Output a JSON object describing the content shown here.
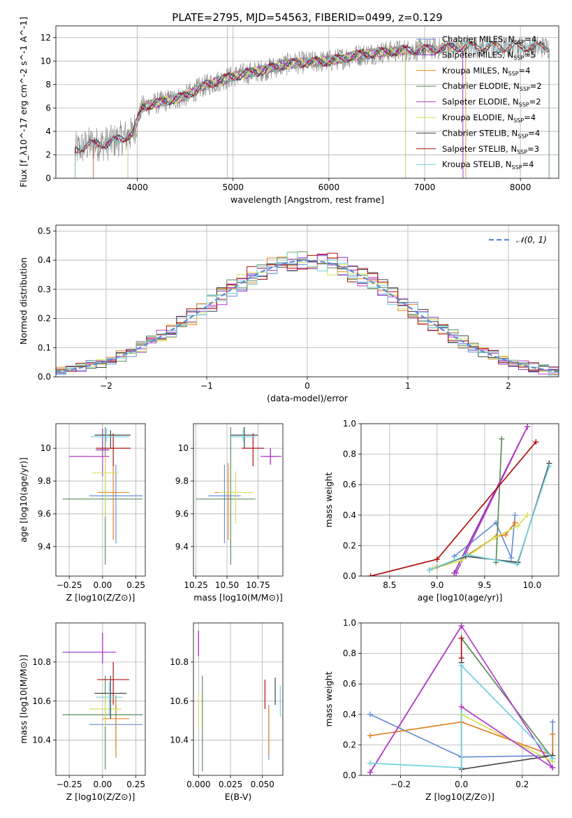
{
  "figure_title": "PLATE=2795, MJD=54563, FIBERID=0499, z=0.129",
  "colors": {
    "Chabrier MILES": "#6a8fd8",
    "Salpeter MILES": "#8e2fb0",
    "Kroupa MILES": "#e08224",
    "Chabrier ELODIE": "#5d8b5d",
    "Salpeter ELODIE": "#b43cc8",
    "Kroupa ELODIE": "#d8e05a",
    "Chabrier STELIB": "#444444",
    "Salpeter STELIB": "#b01010",
    "Kroupa STELIB": "#74d2e0",
    "Data spectrum": "#808080",
    "Gaussian": "#5b8ad6",
    "grid": "#b0b0b0"
  },
  "chart_data": [
    {
      "id": "spectrum",
      "type": "line",
      "title": "PLATE=2795, MJD=54563, FIBERID=0499, z=0.129",
      "xlabel": "wavelength [Angstrom, rest frame]",
      "ylabel": "Flux [f_λ10^-17 erg cm^-2 s^-1 A^-1]",
      "xlim": [
        3150,
        8400
      ],
      "ylim": [
        0,
        13
      ],
      "xticks": [
        4000,
        5000,
        6000,
        7000,
        8000
      ],
      "yticks": [
        0,
        2,
        4,
        6,
        8,
        10,
        12
      ],
      "grid": true,
      "legend_position": "top-right",
      "legend": [
        "Chabrier MILES, N_SSP=4",
        "Salpeter MILES, N_SSP=5",
        "Kroupa MILES, N_SSP=4",
        "Chabrier ELODIE, N_SSP=2",
        "Salpeter ELODIE, N_SSP=2",
        "Kroupa ELODIE, N_SSP=4",
        "Chabrier STELIB, N_SSP=4",
        "Salpeter STELIB, N_SSP=3",
        "Kroupa STELIB, N_SSP=4"
      ],
      "continuum_knots": [
        [
          3350,
          2.4
        ],
        [
          3500,
          2.9
        ],
        [
          3700,
          3.0
        ],
        [
          3800,
          3.3
        ],
        [
          3950,
          3.8
        ],
        [
          4050,
          6.1
        ],
        [
          4300,
          6.6
        ],
        [
          4500,
          7.0
        ],
        [
          4700,
          7.9
        ],
        [
          5000,
          8.7
        ],
        [
          5300,
          9.2
        ],
        [
          5600,
          9.8
        ],
        [
          6000,
          10.0
        ],
        [
          6300,
          10.5
        ],
        [
          6600,
          10.8
        ],
        [
          7000,
          11.0
        ],
        [
          7400,
          11.2
        ],
        [
          8300,
          11.2
        ]
      ],
      "model_ranges": {
        "Chabrier MILES": [
          3540,
          7400
        ],
        "Salpeter MILES": [
          3540,
          7400
        ],
        "Kroupa MILES": [
          3540,
          7430
        ],
        "Chabrier ELODIE": [
          3900,
          6800
        ],
        "Salpeter ELODIE": [
          3900,
          6800
        ],
        "Kroupa ELODIE": [
          3900,
          6800
        ],
        "Chabrier STELIB": [
          3350,
          8300
        ],
        "Salpeter STELIB": [
          3350,
          8300
        ],
        "Kroupa STELIB": [
          3350,
          8300
        ]
      }
    },
    {
      "id": "residuals",
      "type": "histogram",
      "xlabel": "(data-model)/error",
      "ylabel": "Normed distribution",
      "xlim": [
        -2.5,
        2.5
      ],
      "ylim": [
        0,
        0.52
      ],
      "xticks": [
        -2,
        -1,
        0,
        1,
        2
      ],
      "yticks": [
        0.0,
        0.1,
        0.2,
        0.3,
        0.4,
        0.5
      ],
      "grid": true,
      "legend_position": "top-right",
      "gaussian_label": "𝒩(0, 1)",
      "bin_width": 0.1,
      "bin_start": -2.5
    },
    {
      "id": "age_vs_Z",
      "type": "scatter",
      "xlabel": "Z [log10(Z/Z⊙)]",
      "ylabel": "age [log10(age/yr)]",
      "xlim": [
        -0.35,
        0.32
      ],
      "ylim": [
        9.22,
        10.15
      ],
      "xticks": [
        -0.25,
        0.0,
        0.25
      ],
      "xticklabels": [
        "−0.25",
        "0.00",
        "0.25"
      ],
      "yticks": [
        9.4,
        9.6,
        9.8,
        10.0
      ],
      "points": [
        {
          "model": "Chabrier MILES",
          "x": 0.1,
          "y": 9.71,
          "xerr": [
            0.2,
            0.2
          ],
          "yerr": [
            0.29,
            0.19
          ]
        },
        {
          "model": "Salpeter MILES",
          "x": 0.0,
          "y": 9.99,
          "xerr": [
            0.05,
            0.05
          ],
          "yerr": [
            0.02,
            0.13
          ]
        },
        {
          "model": "Kroupa MILES",
          "x": 0.08,
          "y": 9.73,
          "xerr": [
            0.12,
            0.12
          ],
          "yerr": [
            0.29,
            0.18
          ]
        },
        {
          "model": "Chabrier ELODIE",
          "x": 0.02,
          "y": 9.69,
          "xerr": [
            0.32,
            0.28
          ],
          "yerr": [
            0.4,
            0.44
          ]
        },
        {
          "model": "Salpeter ELODIE",
          "x": 0.0,
          "y": 9.95,
          "xerr": [
            0.25,
            0.05
          ],
          "yerr": [
            0.12,
            0.05
          ]
        },
        {
          "model": "Kroupa ELODIE",
          "x": 0.02,
          "y": 9.85,
          "xerr": [
            0.1,
            0.1
          ],
          "yerr": [
            0.27,
            0.1
          ]
        },
        {
          "model": "Chabrier STELIB",
          "x": 0.06,
          "y": 10.08,
          "xerr": [
            0.12,
            0.15
          ],
          "yerr": [
            0.08,
            0.03
          ]
        },
        {
          "model": "Salpeter STELIB",
          "x": 0.08,
          "y": 10.0,
          "xerr": [
            0.13,
            0.13
          ],
          "yerr": [
            0.11,
            0.09
          ]
        },
        {
          "model": "Kroupa STELIB",
          "x": 0.03,
          "y": 10.07,
          "xerr": [
            0.12,
            0.17
          ],
          "yerr": [
            0.03,
            0.05
          ]
        }
      ]
    },
    {
      "id": "age_vs_mass",
      "type": "scatter",
      "xlabel": "mass [log10(M/M⊙)]",
      "ylabel": "",
      "xlim": [
        10.23,
        10.95
      ],
      "ylim": [
        9.22,
        10.15
      ],
      "xticks": [
        10.25,
        10.5,
        10.75
      ],
      "xticklabels": [
        "10.25",
        "10.50",
        "10.75"
      ],
      "yticks": [
        9.4,
        9.6,
        9.8,
        10.0
      ],
      "points": [
        {
          "model": "Chabrier MILES",
          "x": 10.48,
          "y": 9.71,
          "xerr": [
            0.13,
            0.13
          ],
          "yerr": [
            0.29,
            0.19
          ]
        },
        {
          "model": "Salpeter MILES",
          "x": 10.85,
          "y": 9.95,
          "xerr": [
            0.05,
            0.05
          ],
          "yerr": [
            0.05,
            0.05
          ]
        },
        {
          "model": "Kroupa MILES",
          "x": 10.51,
          "y": 9.73,
          "xerr": [
            0.11,
            0.11
          ],
          "yerr": [
            0.29,
            0.18
          ]
        },
        {
          "model": "Chabrier ELODIE",
          "x": 10.53,
          "y": 9.69,
          "xerr": [
            0.28,
            0.2
          ],
          "yerr": [
            0.4,
            0.44
          ]
        },
        {
          "model": "Salpeter ELODIE",
          "x": 10.85,
          "y": 9.95,
          "xerr": [
            0.08,
            0.09
          ],
          "yerr": [
            0.05,
            0.05
          ]
        },
        {
          "model": "Kroupa ELODIE",
          "x": 10.57,
          "y": 9.73,
          "xerr": [
            0.14,
            0.14
          ],
          "yerr": [
            0.19,
            0.13
          ]
        },
        {
          "model": "Chabrier STELIB",
          "x": 10.64,
          "y": 10.08,
          "xerr": [
            0.11,
            0.11
          ],
          "yerr": [
            0.08,
            0.05
          ]
        },
        {
          "model": "Salpeter STELIB",
          "x": 10.71,
          "y": 10.0,
          "xerr": [
            0.09,
            0.09
          ],
          "yerr": [
            0.11,
            0.09
          ]
        },
        {
          "model": "Kroupa STELIB",
          "x": 10.63,
          "y": 10.07,
          "xerr": [
            0.11,
            0.1
          ],
          "yerr": [
            0.03,
            0.05
          ]
        }
      ]
    },
    {
      "id": "weight_vs_age",
      "type": "line",
      "xlabel": "age [log10(age/yr)]",
      "ylabel": "mass weight",
      "xlim": [
        8.2,
        10.28
      ],
      "ylim": [
        0,
        1
      ],
      "xticks": [
        8.5,
        9.0,
        9.5,
        10.0
      ],
      "xticklabels": [
        "8.5",
        "9.0",
        "9.5",
        "10.0"
      ],
      "yticks": [
        0.0,
        0.2,
        0.4,
        0.6,
        0.8,
        1.0
      ],
      "grid": true,
      "series": [
        {
          "model": "Chabrier MILES",
          "x": [
            9.18,
            9.62,
            9.78,
            9.82
          ],
          "y": [
            0.13,
            0.35,
            0.12,
            0.4
          ]
        },
        {
          "model": "Salpeter MILES",
          "x": [
            9.18,
            9.95
          ],
          "y": [
            0.02,
            0.98
          ]
        },
        {
          "model": "Kroupa MILES",
          "x": [
            9.0,
            9.3,
            9.62,
            9.72,
            9.82
          ],
          "y": [
            0.06,
            0.13,
            0.26,
            0.27,
            0.35
          ]
        },
        {
          "model": "Chabrier ELODIE",
          "x": [
            9.62,
            9.68
          ],
          "y": [
            0.09,
            0.9
          ]
        },
        {
          "model": "Salpeter ELODIE",
          "x": [
            9.2,
            9.95
          ],
          "y": [
            0.02,
            0.98
          ]
        },
        {
          "model": "Kroupa ELODIE",
          "x": [
            8.95,
            9.25,
            9.6,
            9.85,
            9.95
          ],
          "y": [
            0.05,
            0.1,
            0.25,
            0.33,
            0.4
          ]
        },
        {
          "model": "Chabrier STELIB",
          "x": [
            8.92,
            9.3,
            9.85,
            10.18
          ],
          "y": [
            0.04,
            0.13,
            0.09,
            0.74
          ]
        },
        {
          "model": "Salpeter STELIB",
          "x": [
            8.3,
            9.0,
            10.04
          ],
          "y": [
            0.0,
            0.11,
            0.88
          ]
        },
        {
          "model": "Kroupa STELIB",
          "x": [
            8.92,
            9.32,
            9.84,
            10.18
          ],
          "y": [
            0.04,
            0.14,
            0.08,
            0.72
          ]
        }
      ]
    },
    {
      "id": "mass_vs_Z",
      "type": "scatter",
      "xlabel": "Z [log10(Z/Z⊙)]",
      "ylabel": "mass [log10(M/M⊙)]",
      "xlim": [
        -0.35,
        0.32
      ],
      "ylim": [
        10.22,
        11.0
      ],
      "xticks": [
        -0.25,
        0.0,
        0.25
      ],
      "xticklabels": [
        "−0.25",
        "0.00",
        "0.25"
      ],
      "yticks": [
        10.4,
        10.6,
        10.8
      ],
      "points": [
        {
          "model": "Chabrier MILES",
          "x": 0.1,
          "y": 10.48,
          "xerr": [
            0.2,
            0.2
          ],
          "yerr": [
            0.13,
            0.13
          ]
        },
        {
          "model": "Salpeter MILES",
          "x": 0.0,
          "y": 10.85,
          "xerr": [
            0.3,
            0.1
          ],
          "yerr": [
            0.05,
            0.1
          ]
        },
        {
          "model": "Kroupa MILES",
          "x": 0.1,
          "y": 10.51,
          "xerr": [
            0.1,
            0.1
          ],
          "yerr": [
            0.2,
            0.12
          ]
        },
        {
          "model": "Chabrier ELODIE",
          "x": 0.02,
          "y": 10.53,
          "xerr": [
            0.32,
            0.28
          ],
          "yerr": [
            0.28,
            0.2
          ]
        },
        {
          "model": "Salpeter ELODIE",
          "x": 0.0,
          "y": 10.85,
          "xerr": [
            0.05,
            0.05
          ],
          "yerr": [
            0.06,
            0.1
          ]
        },
        {
          "model": "Kroupa ELODIE",
          "x": 0.02,
          "y": 10.56,
          "xerr": [
            0.12,
            0.12
          ],
          "yerr": [
            0.09,
            0.08
          ]
        },
        {
          "model": "Chabrier STELIB",
          "x": 0.06,
          "y": 10.64,
          "xerr": [
            0.12,
            0.12
          ],
          "yerr": [
            0.13,
            0.09
          ]
        },
        {
          "model": "Salpeter STELIB",
          "x": 0.08,
          "y": 10.71,
          "xerr": [
            0.12,
            0.12
          ],
          "yerr": [
            0.13,
            0.09
          ]
        },
        {
          "model": "Kroupa STELIB",
          "x": 0.05,
          "y": 10.62,
          "xerr": [
            0.1,
            0.1
          ],
          "yerr": [
            0.1,
            0.08
          ]
        }
      ]
    },
    {
      "id": "mass_vs_ebv",
      "type": "scatter",
      "xlabel": "E(B-V)",
      "ylabel": "",
      "xlim": [
        -0.004,
        0.066
      ],
      "ylim": [
        10.22,
        11.0
      ],
      "xticks": [
        0.0,
        0.025,
        0.05
      ],
      "xticklabels": [
        "0.000",
        "0.025",
        "0.050"
      ],
      "yticks": [
        10.4,
        10.6,
        10.8
      ],
      "points": [
        {
          "model": "Chabrier MILES",
          "x": 0.055,
          "y": 10.48,
          "xerr": [
            0,
            0
          ],
          "yerr": [
            0.18,
            0.1
          ]
        },
        {
          "model": "Salpeter MILES",
          "x": 0.0,
          "y": 10.88,
          "xerr": [
            0,
            0
          ],
          "yerr": [
            0.05,
            0.08
          ]
        },
        {
          "model": "Kroupa MILES",
          "x": 0.055,
          "y": 10.51,
          "xerr": [
            0,
            0
          ],
          "yerr": [
            0.18,
            0.06
          ]
        },
        {
          "model": "Chabrier ELODIE",
          "x": 0.003,
          "y": 10.5,
          "xerr": [
            0,
            0
          ],
          "yerr": [
            0.26,
            0.23
          ]
        },
        {
          "model": "Salpeter ELODIE",
          "x": 0.0,
          "y": 10.88,
          "xerr": [
            0,
            0
          ],
          "yerr": [
            0.05,
            0.08
          ]
        },
        {
          "model": "Kroupa ELODIE",
          "x": 0.0,
          "y": 10.56,
          "xerr": [
            0,
            0
          ],
          "yerr": [
            0.1,
            0.08
          ]
        },
        {
          "model": "Chabrier STELIB",
          "x": 0.06,
          "y": 10.64,
          "xerr": [
            0,
            0
          ],
          "yerr": [
            0.06,
            0.08
          ]
        },
        {
          "model": "Salpeter STELIB",
          "x": 0.052,
          "y": 10.62,
          "xerr": [
            0,
            0
          ],
          "yerr": [
            0.06,
            0.09
          ]
        },
        {
          "model": "Kroupa STELIB",
          "x": 0.064,
          "y": 10.58,
          "xerr": [
            0,
            0
          ],
          "yerr": [
            0.06,
            0.1
          ]
        }
      ]
    },
    {
      "id": "weight_vs_Z",
      "type": "line",
      "xlabel": "Z [log10(Z/Z⊙)]",
      "ylabel": "mass weight",
      "xlim": [
        -0.33,
        0.32
      ],
      "ylim": [
        0,
        1
      ],
      "xticks": [
        -0.2,
        0.0,
        0.2
      ],
      "xticklabels": [
        "−0.2",
        "0.0",
        "0.2"
      ],
      "yticks": [
        0.0,
        0.2,
        0.4,
        0.6,
        0.8,
        1.0
      ],
      "grid": true,
      "series": [
        {
          "model": "Chabrier MILES",
          "x": [
            -0.3,
            0.0,
            0.0,
            0.3,
            0.3
          ],
          "y": [
            0.4,
            0.12,
            0.12,
            0.13,
            0.35
          ]
        },
        {
          "model": "Salpeter MILES",
          "x": [
            -0.3,
            0.0
          ],
          "y": [
            0.02,
            0.98
          ]
        },
        {
          "model": "Kroupa MILES",
          "x": [
            -0.3,
            0.0,
            0.3,
            0.3
          ],
          "y": [
            0.26,
            0.35,
            0.13,
            0.27
          ]
        },
        {
          "model": "Chabrier ELODIE",
          "x": [
            0.0,
            0.3
          ],
          "y": [
            0.9,
            0.11
          ]
        },
        {
          "model": "Salpeter ELODIE",
          "x": [
            -0.3,
            0.0,
            0.3
          ],
          "y": [
            0.02,
            0.98,
            0.05
          ]
        },
        {
          "model": "Kroupa ELODIE",
          "x": [
            0.0,
            0.3
          ],
          "y": [
            0.4,
            0.09
          ]
        },
        {
          "model": "Chabrier STELIB",
          "x": [
            0.0,
            0.0,
            0.3
          ],
          "y": [
            0.74,
            0.04,
            0.13
          ]
        },
        {
          "model": "Salpeter STELIB",
          "x": [
            0.0,
            0.0
          ],
          "y": [
            0.77,
            0.9
          ]
        },
        {
          "model": "Kroupa STELIB",
          "x": [
            -0.3,
            0.0,
            0.0,
            0.3
          ],
          "y": [
            0.08,
            0.05,
            0.72,
            0.11
          ]
        },
        {
          "model": "Salpeter ELODIE",
          "x": [
            0.0,
            0.3
          ],
          "y": [
            0.45,
            0.05
          ]
        }
      ]
    }
  ]
}
